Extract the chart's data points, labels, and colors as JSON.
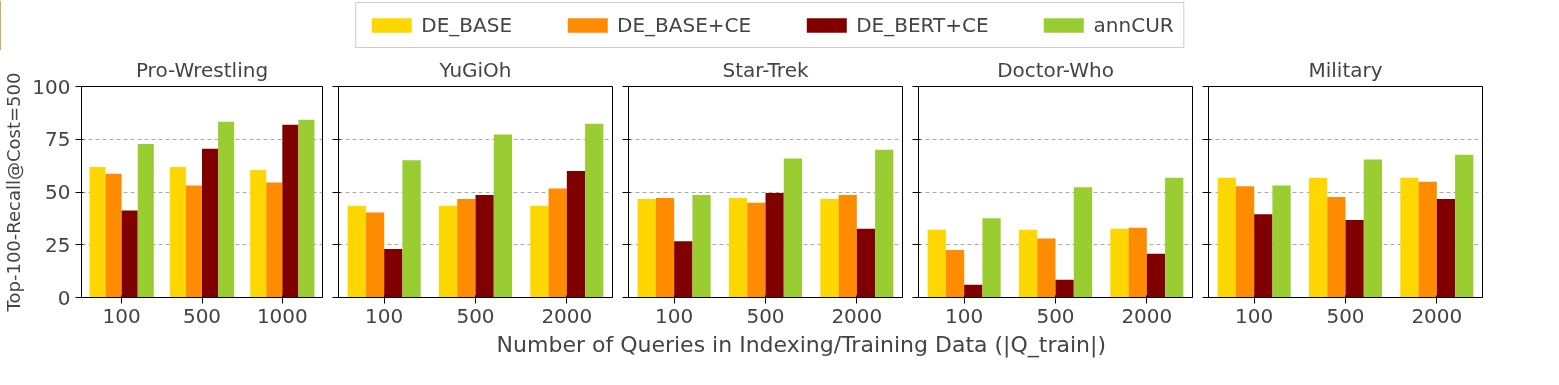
{
  "chart_data": [
    {
      "type": "bar",
      "title": "Pro-Wrestling",
      "ylabel": "Top-100-Recall@Cost=500",
      "categories": [
        "100",
        "500",
        "1000"
      ],
      "ylim": [
        0,
        100
      ],
      "yticks": [
        0,
        25,
        50,
        75,
        100
      ],
      "grid": "y",
      "legend": "top",
      "series": [
        {
          "name": "DE_BASE",
          "color": "#ffd700",
          "values": [
            61.8,
            61.8,
            60.4
          ]
        },
        {
          "name": "DE_BASE+CE",
          "color": "#ff8c00",
          "values": [
            58.6,
            53.1,
            54.5
          ]
        },
        {
          "name": "DE_BERT+CE",
          "color": "#800000",
          "values": [
            41.2,
            70.5,
            81.9
          ]
        },
        {
          "name": "annCUR",
          "color": "#9acd32",
          "values": [
            72.8,
            83.3,
            84.2
          ]
        }
      ]
    },
    {
      "type": "bar",
      "title": "YuGiOh",
      "categories": [
        "100",
        "500",
        "2000"
      ],
      "ylim": [
        0,
        100
      ],
      "yticks": [
        {
          "value": 0,
          "label": null
        },
        {
          "value": 25,
          "label": null
        },
        {
          "value": 50,
          "label": null
        },
        {
          "value": 75,
          "label": null
        },
        {
          "value": 100,
          "label": null
        }
      ],
      "grid": "y",
      "tick_labels": "x",
      "series": [
        {
          "color": "#ffd700",
          "values": [
            43.5,
            43.5,
            43.5
          ]
        },
        {
          "color": "#ff8c00",
          "values": [
            40.3,
            46.7,
            51.7
          ]
        },
        {
          "color": "#800000",
          "values": [
            23.0,
            48.6,
            60.0
          ]
        },
        {
          "color": "#9acd32",
          "values": [
            65.0,
            77.3,
            82.3
          ]
        }
      ]
    },
    {
      "type": "bar",
      "title": "Star-Trek",
      "xlabel": "Number of Queries in Indexing/Training Data (|Q_train|)",
      "categories": [
        "100",
        "500",
        "2000"
      ],
      "ylim": [
        0,
        100
      ],
      "yticks": [
        {
          "value": 0,
          "label": null
        },
        {
          "value": 25,
          "label": null
        },
        {
          "value": 50,
          "label": null
        },
        {
          "value": 75,
          "label": null
        },
        {
          "value": 100,
          "label": null
        }
      ],
      "grid": "y",
      "tick_labels": "x",
      "series": [
        {
          "color": "#ffd700",
          "values": [
            46.7,
            47.2,
            46.7
          ]
        },
        {
          "color": "#ff8c00",
          "values": [
            47.2,
            44.9,
            48.6
          ]
        },
        {
          "color": "#800000",
          "values": [
            26.6,
            49.5,
            32.6
          ]
        },
        {
          "color": "#9acd32",
          "values": [
            48.6,
            65.9,
            70.0
          ]
        }
      ]
    },
    {
      "type": "bar",
      "title": "Doctor-Who",
      "categories": [
        "100",
        "500",
        "2000"
      ],
      "ylim": [
        0,
        100
      ],
      "yticks": [
        {
          "value": 0,
          "label": null
        },
        {
          "value": 25,
          "label": null
        },
        {
          "value": 50,
          "label": null
        },
        {
          "value": 75,
          "label": null
        },
        {
          "value": 100,
          "label": null
        }
      ],
      "grid": "y",
      "tick_labels": "x",
      "series": [
        {
          "color": "#ffd700",
          "values": [
            32.1,
            32.1,
            32.6
          ]
        },
        {
          "color": "#ff8c00",
          "values": [
            22.5,
            28.0,
            33.0
          ]
        },
        {
          "color": "#800000",
          "values": [
            6.1,
            8.4,
            20.7
          ]
        },
        {
          "color": "#9acd32",
          "values": [
            37.6,
            52.2,
            56.8
          ]
        }
      ]
    },
    {
      "type": "bar",
      "title": "Military",
      "categories": [
        "100",
        "500",
        "2000"
      ],
      "ylim": [
        0,
        100
      ],
      "yticks": [
        {
          "value": 0,
          "label": null
        },
        {
          "value": 25,
          "label": null
        },
        {
          "value": 50,
          "label": null
        },
        {
          "value": 75,
          "label": null
        },
        {
          "value": 100,
          "label": null
        }
      ],
      "grid": "y",
      "tick_labels": "x",
      "series": [
        {
          "color": "#ffd700",
          "values": [
            56.8,
            56.8,
            56.8
          ]
        },
        {
          "color": "#ff8c00",
          "values": [
            52.7,
            47.6,
            54.9
          ]
        },
        {
          "color": "#800000",
          "values": [
            39.4,
            36.7,
            46.7
          ]
        },
        {
          "color": "#9acd32",
          "values": [
            53.1,
            65.4,
            67.7
          ]
        }
      ]
    }
  ]
}
